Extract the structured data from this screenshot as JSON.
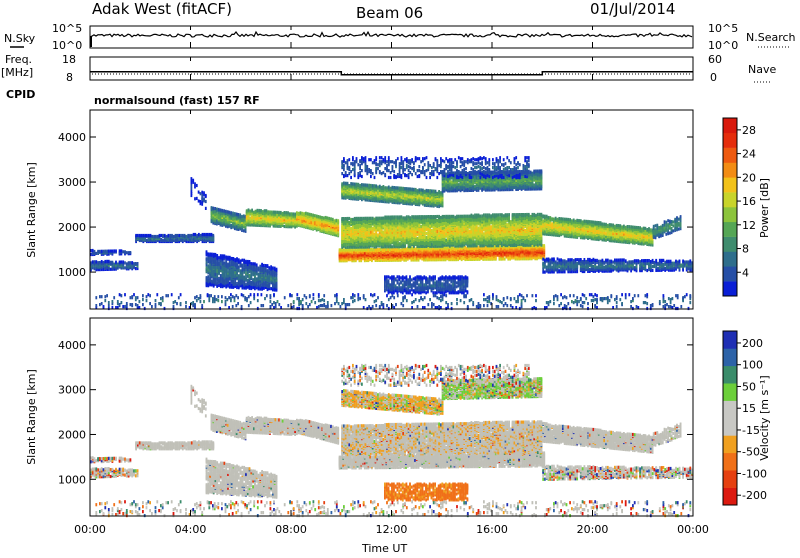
{
  "header": {
    "left": "Adak West (fitACF)",
    "center": "Beam 06",
    "right": "01/Jul/2014"
  },
  "side_labels": {
    "nsky": "N.Sky",
    "freq": "Freq.",
    "freq_unit": "[MHz]",
    "cpid": "CPID",
    "nsearch": "N.Search",
    "nave": "Nave"
  },
  "cpid_text": "normalsound (fast) 157 RF",
  "colors": {
    "power_scale": [
      "#0a1fd6",
      "#264fa6",
      "#2e6e8c",
      "#3f8c6e",
      "#55a655",
      "#8cc43c",
      "#c8d42a",
      "#f2c21a",
      "#f28c14",
      "#ee5a10",
      "#e52d0c",
      "#d9190c"
    ],
    "velocity_scale": [
      "#1f2fb4",
      "#2d63a8",
      "#3a8c6a",
      "#6ccf3a",
      "#c8c8c4",
      "#c8c8c4",
      "#f0a020",
      "#f07018",
      "#e64010",
      "#dc1a10"
    ],
    "ground_scatter": "#c0c0b8"
  },
  "chart_data": [
    {
      "type": "line",
      "name": "noise-panel",
      "left_ticks": [
        "10^5",
        "10^0"
      ],
      "right_ticks": [
        "10^5",
        "10^0"
      ]
    },
    {
      "type": "line",
      "name": "frequency-panel",
      "left_ticks": [
        "18",
        "8"
      ],
      "right_ticks": [
        "60",
        "0"
      ],
      "freq_steps": [
        [
          0,
          11.6
        ],
        [
          10,
          11.6
        ],
        [
          10,
          10.3
        ],
        [
          18,
          10.3
        ],
        [
          18,
          11.6
        ],
        [
          24,
          11.6
        ]
      ]
    },
    {
      "type": "heatmap",
      "name": "power-panel",
      "xlim": [
        0,
        24
      ],
      "ylim": [
        180,
        4600
      ],
      "ylabel": "Slant Range [km]",
      "yticks": [
        "1000",
        "2000",
        "3000",
        "4000"
      ],
      "colorbar": {
        "label": "Power [dB]",
        "ticks": [
          "4",
          "8",
          "12",
          "16",
          "20",
          "24",
          "28"
        ],
        "range": [
          0,
          30
        ]
      }
    },
    {
      "type": "heatmap",
      "name": "velocity-panel",
      "xlim": [
        0,
        24
      ],
      "ylim": [
        180,
        4600
      ],
      "ylabel": "Slant Range [km]",
      "yticks": [
        "1000",
        "2000",
        "3000",
        "4000"
      ],
      "xticks": [
        "00:00",
        "04:00",
        "08:00",
        "12:00",
        "16:00",
        "20:00",
        "00:00"
      ],
      "xlabel": "Time UT",
      "colorbar": {
        "label": "Velocity [m s⁻¹]",
        "ticks": [
          "200",
          "100",
          "50",
          "15",
          "-15",
          "-50",
          "-100",
          "-200"
        ]
      }
    }
  ]
}
